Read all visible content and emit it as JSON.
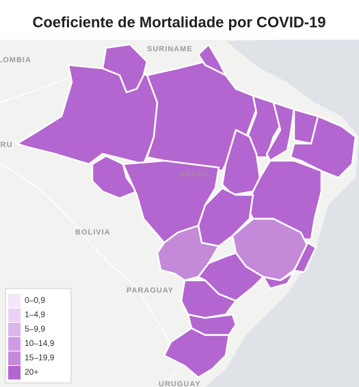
{
  "title": "Coeficiente de Mortalidade por COVID-19",
  "map_labels": [
    "SURINAME",
    "COLOMBIA",
    "PERU",
    "BRAZIL",
    "BOLIVIA",
    "PARAGUAY",
    "URUGUAY"
  ],
  "legend": [
    {
      "label": "0–0,9",
      "color": "#f5e6fa"
    },
    {
      "label": "1–4,9",
      "color": "#ebd2f4"
    },
    {
      "label": "5–9,9",
      "color": "#ddb5ec"
    },
    {
      "label": "10–14,9",
      "color": "#cf9ce3"
    },
    {
      "label": "15–19,9",
      "color": "#c48ad9"
    },
    {
      "label": "20+",
      "color": "#b366cf"
    }
  ]
}
